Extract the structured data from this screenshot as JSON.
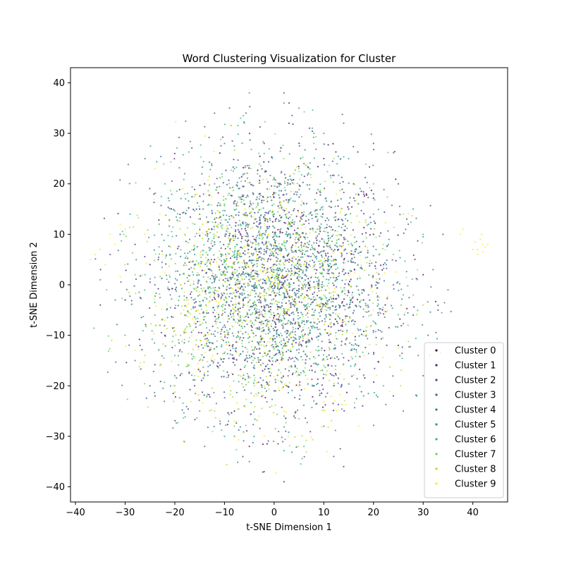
{
  "chart_data": {
    "type": "scatter",
    "title": "Word Clustering Visualization for Cluster",
    "xlabel": "t-SNE Dimension 1",
    "ylabel": "t-SNE Dimension 2",
    "xlim": [
      -41,
      47
    ],
    "ylim": [
      -43,
      43
    ],
    "xticks": [
      -40,
      -30,
      -20,
      -10,
      0,
      10,
      20,
      30,
      40
    ],
    "yticks": [
      -40,
      -30,
      -20,
      -10,
      0,
      10,
      20,
      30,
      40
    ],
    "xtick_labels": [
      "−40",
      "−30",
      "−20",
      "−10",
      "0",
      "10",
      "20",
      "30",
      "40"
    ],
    "ytick_labels": [
      "−40",
      "−30",
      "−20",
      "−10",
      "0",
      "10",
      "20",
      "30",
      "40"
    ],
    "grid": false,
    "legend_position": "lower-right",
    "series": [
      {
        "name": "Cluster 0",
        "color": "#440154",
        "cloud": {
          "center": [
            2,
            0
          ],
          "spread": [
            11,
            12
          ],
          "count": 420
        },
        "points": [
          [
            -12,
            5
          ],
          [
            5,
            -8
          ],
          [
            14,
            3
          ],
          [
            -3,
            18
          ],
          [
            8,
            -20
          ],
          [
            -18,
            -6
          ],
          [
            20,
            10
          ],
          [
            0,
            0
          ],
          [
            -8,
            -25
          ],
          [
            10,
            25
          ],
          [
            -25,
            4
          ],
          [
            25,
            -12
          ],
          [
            3,
            32
          ],
          [
            -5,
            -32
          ],
          [
            30,
            2
          ],
          [
            -30,
            -3
          ],
          [
            15,
            15
          ],
          [
            -15,
            15
          ],
          [
            15,
            -15
          ],
          [
            -15,
            -15
          ],
          [
            1,
            -7
          ],
          [
            -4,
            9
          ],
          [
            7,
            4
          ],
          [
            -9,
            -12
          ],
          [
            18,
            -3
          ]
        ]
      },
      {
        "name": "Cluster 1",
        "color": "#482878",
        "cloud": {
          "center": [
            0,
            0
          ],
          "spread": [
            12,
            13
          ],
          "count": 420
        },
        "points": [
          [
            -10,
            -8
          ],
          [
            6,
            12
          ],
          [
            -14,
            20
          ],
          [
            12,
            -18
          ],
          [
            22,
            4
          ],
          [
            -22,
            -10
          ],
          [
            4,
            -26
          ],
          [
            -2,
            28
          ],
          [
            28,
            -6
          ],
          [
            -28,
            8
          ],
          [
            16,
            20
          ],
          [
            -16,
            -20
          ],
          [
            9,
            0
          ],
          [
            -9,
            0
          ],
          [
            0,
            9
          ],
          [
            0,
            -9
          ],
          [
            3,
            36
          ],
          [
            2,
            -39
          ],
          [
            33,
            -5
          ],
          [
            -35,
            -4
          ],
          [
            14,
            -36
          ],
          [
            20,
            28
          ],
          [
            -20,
            26
          ],
          [
            24,
            -22
          ],
          [
            -24,
            -22
          ]
        ]
      },
      {
        "name": "Cluster 2",
        "color": "#3e4989",
        "cloud": {
          "center": [
            0,
            0
          ],
          "spread": [
            12,
            13
          ],
          "count": 420
        },
        "points": [
          [
            -6,
            14
          ],
          [
            11,
            -10
          ],
          [
            -19,
            2
          ],
          [
            19,
            -2
          ],
          [
            0,
            21
          ],
          [
            0,
            -21
          ],
          [
            27,
            12
          ],
          [
            -27,
            -12
          ],
          [
            8,
            30
          ],
          [
            -8,
            -30
          ],
          [
            13,
            13
          ],
          [
            -13,
            -13
          ],
          [
            5,
            5
          ],
          [
            -5,
            -5
          ],
          [
            2,
            38
          ],
          [
            -9,
            35
          ],
          [
            34,
            10
          ],
          [
            -33,
            6
          ],
          [
            12,
            -34
          ],
          [
            -12,
            34
          ],
          [
            25,
            20
          ],
          [
            -25,
            -20
          ],
          [
            30,
            -18
          ],
          [
            -2,
            -37
          ],
          [
            6,
            -4
          ]
        ]
      },
      {
        "name": "Cluster 3",
        "color": "#31688e",
        "cloud": {
          "center": [
            0,
            0
          ],
          "spread": [
            12,
            13
          ],
          "count": 420
        },
        "points": [
          [
            7,
            8
          ],
          [
            -7,
            -8
          ],
          [
            17,
            -9
          ],
          [
            -17,
            9
          ],
          [
            3,
            -17
          ],
          [
            -3,
            17
          ],
          [
            24,
            0
          ],
          [
            -24,
            0
          ],
          [
            10,
            -28
          ],
          [
            -10,
            28
          ],
          [
            20,
            18
          ],
          [
            -20,
            -18
          ],
          [
            1,
            2
          ],
          [
            -1,
            -2
          ],
          [
            31,
            -10
          ],
          [
            -31,
            10
          ],
          [
            14,
            32
          ],
          [
            -14,
            -32
          ],
          [
            26,
            -25
          ],
          [
            -26,
            25
          ],
          [
            4,
            12
          ],
          [
            -11,
            3
          ],
          [
            9,
            -14
          ],
          [
            -6,
            22
          ],
          [
            16,
            6
          ]
        ]
      },
      {
        "name": "Cluster 4",
        "color": "#26828e",
        "cloud": {
          "center": [
            0,
            0
          ],
          "spread": [
            12,
            13
          ],
          "count": 420
        },
        "points": [
          [
            -4,
            4
          ],
          [
            4,
            -4
          ],
          [
            13,
            9
          ],
          [
            -13,
            -9
          ],
          [
            9,
            -13
          ],
          [
            -9,
            13
          ],
          [
            21,
            -6
          ],
          [
            -21,
            6
          ],
          [
            6,
            24
          ],
          [
            -6,
            -24
          ],
          [
            18,
            -22
          ],
          [
            -18,
            22
          ],
          [
            0,
            14
          ],
          [
            0,
            -14
          ],
          [
            32,
            3
          ],
          [
            -32,
            -3
          ],
          [
            5,
            35
          ],
          [
            -5,
            -35
          ],
          [
            28,
            15
          ],
          [
            -28,
            -15
          ],
          [
            11,
            1
          ],
          [
            -2,
            7
          ],
          [
            8,
            -6
          ],
          [
            -15,
            -2
          ],
          [
            2,
            -11
          ]
        ]
      },
      {
        "name": "Cluster 5",
        "color": "#1f9e89",
        "cloud": {
          "center": [
            0,
            0
          ],
          "spread": [
            12,
            13
          ],
          "count": 420
        },
        "points": [
          [
            -5,
            38
          ],
          [
            2,
            36
          ],
          [
            12,
            5
          ],
          [
            -12,
            -5
          ],
          [
            5,
            -12
          ],
          [
            -5,
            12
          ],
          [
            23,
            8
          ],
          [
            -23,
            -8
          ],
          [
            8,
            -23
          ],
          [
            -8,
            23
          ],
          [
            15,
            25
          ],
          [
            -15,
            -25
          ],
          [
            3,
            0
          ],
          [
            -3,
            0
          ],
          [
            29,
            -14
          ],
          [
            -29,
            14
          ],
          [
            10,
            30
          ],
          [
            -10,
            -30
          ],
          [
            35,
            -1
          ],
          [
            -35,
            1
          ],
          [
            6,
            16
          ],
          [
            -16,
            6
          ],
          [
            13,
            -4
          ],
          [
            -4,
            -16
          ],
          [
            19,
            12
          ]
        ]
      },
      {
        "name": "Cluster 6",
        "color": "#35b779",
        "cloud": {
          "center": [
            -2,
            2
          ],
          "spread": [
            12,
            12
          ],
          "count": 420
        },
        "points": [
          [
            -8,
            6
          ],
          [
            8,
            -6
          ],
          [
            -16,
            12
          ],
          [
            16,
            -12
          ],
          [
            -2,
            26
          ],
          [
            2,
            -26
          ],
          [
            -26,
            2
          ],
          [
            26,
            -2
          ],
          [
            -12,
            20
          ],
          [
            12,
            -20
          ],
          [
            -20,
            -14
          ],
          [
            20,
            14
          ],
          [
            -1,
            1
          ],
          [
            1,
            -1
          ],
          [
            -30,
            -10
          ],
          [
            30,
            10
          ],
          [
            -6,
            32
          ],
          [
            6,
            -32
          ],
          [
            -22,
            20
          ],
          [
            22,
            -20
          ],
          [
            -10,
            -3
          ],
          [
            10,
            3
          ],
          [
            -3,
            10
          ],
          [
            3,
            -10
          ],
          [
            -14,
            -18
          ]
        ]
      },
      {
        "name": "Cluster 7",
        "color": "#6ece58",
        "cloud": {
          "center": [
            -3,
            1
          ],
          "spread": [
            11,
            12
          ],
          "count": 420
        },
        "points": [
          [
            -5,
            0
          ],
          [
            5,
            2
          ],
          [
            -15,
            -8
          ],
          [
            15,
            8
          ],
          [
            -10,
            16
          ],
          [
            10,
            -16
          ],
          [
            -24,
            -6
          ],
          [
            24,
            6
          ],
          [
            -4,
            -22
          ],
          [
            4,
            22
          ],
          [
            -18,
            18
          ],
          [
            18,
            -18
          ],
          [
            -2,
            5
          ],
          [
            2,
            -5
          ],
          [
            -28,
            2
          ],
          [
            28,
            -2
          ],
          [
            -8,
            -28
          ],
          [
            8,
            28
          ],
          [
            -20,
            -20
          ],
          [
            20,
            20
          ],
          [
            -12,
            8
          ],
          [
            12,
            -8
          ],
          [
            -7,
            -14
          ],
          [
            7,
            14
          ],
          [
            0,
            10
          ]
        ]
      },
      {
        "name": "Cluster 8",
        "color": "#b5de2b",
        "cloud": {
          "center": [
            -2,
            -3
          ],
          "spread": [
            12,
            12
          ],
          "count": 420
        },
        "points": [
          [
            -6,
            -4
          ],
          [
            6,
            4
          ],
          [
            -14,
            -12
          ],
          [
            14,
            12
          ],
          [
            -4,
            -20
          ],
          [
            4,
            20
          ],
          [
            -22,
            -8
          ],
          [
            22,
            8
          ],
          [
            -12,
            -25
          ],
          [
            12,
            25
          ],
          [
            -18,
            10
          ],
          [
            18,
            -10
          ],
          [
            -1,
            -1
          ],
          [
            1,
            1
          ],
          [
            -26,
            -14
          ],
          [
            26,
            14
          ],
          [
            -8,
            -30
          ],
          [
            8,
            30
          ],
          [
            -30,
            4
          ],
          [
            30,
            -4
          ],
          [
            -10,
            2
          ],
          [
            10,
            -2
          ],
          [
            -3,
            -12
          ],
          [
            3,
            12
          ],
          [
            -16,
            -18
          ]
        ]
      },
      {
        "name": "Cluster 9",
        "color": "#fde725",
        "cloud": {
          "center": [
            -2,
            -2
          ],
          "spread": [
            12,
            12
          ],
          "count": 380
        },
        "points": [
          [
            41,
            7
          ],
          [
            42,
            8
          ],
          [
            40,
            7
          ],
          [
            41.5,
            9
          ],
          [
            42.5,
            7.5
          ],
          [
            41,
            6
          ],
          [
            43,
            8
          ],
          [
            40.5,
            8.5
          ],
          [
            42,
            6.5
          ],
          [
            41.8,
            10
          ],
          [
            38,
            11
          ],
          [
            37.5,
            10
          ],
          [
            -37,
            5
          ],
          [
            -36,
            6
          ],
          [
            -35,
            7
          ],
          [
            -34,
            4
          ],
          [
            -33,
            10
          ],
          [
            -31,
            12
          ],
          [
            -32,
            8
          ],
          [
            -30,
            11
          ],
          [
            -24,
            23
          ],
          [
            -23,
            14
          ],
          [
            -22,
            -7
          ],
          [
            -20,
            -9
          ],
          [
            -4,
            -22
          ],
          [
            -3,
            -26
          ],
          [
            -2,
            -30
          ],
          [
            0,
            -31
          ],
          [
            2,
            -25
          ],
          [
            -28,
            -13
          ],
          [
            -26,
            10
          ],
          [
            -8,
            -27
          ],
          [
            5,
            -20
          ],
          [
            -15,
            -15
          ],
          [
            12,
            2
          ],
          [
            20,
            -5
          ],
          [
            -10,
            5
          ],
          [
            0,
            0
          ],
          [
            6,
            8
          ],
          [
            -5,
            12
          ]
        ]
      }
    ]
  }
}
